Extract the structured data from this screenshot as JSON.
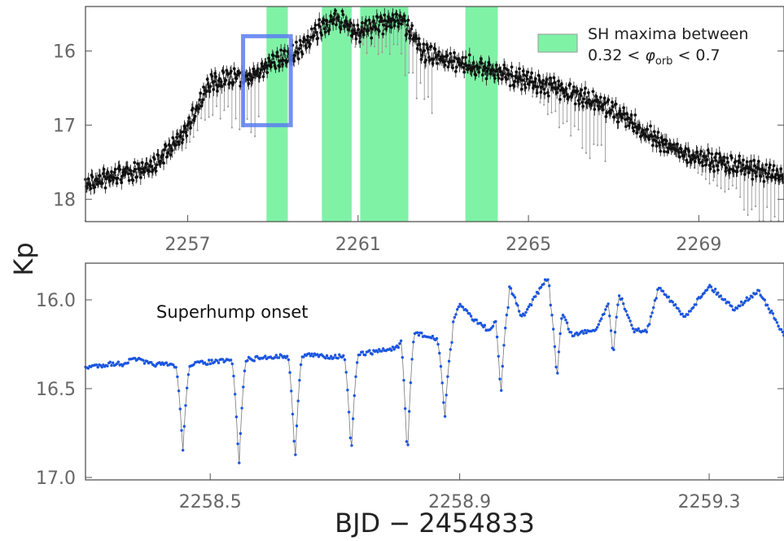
{
  "figure": {
    "ylabel": "Kp",
    "xlabel": "BJD − 2454833"
  },
  "colors": {
    "sh_band": "#7FF2A6",
    "zoom_box": "#5B7EF0",
    "top_points": "#111111",
    "top_errorbars": "#9a9a9a",
    "bottom_series": "#1A55E0"
  },
  "chart_data": [
    {
      "type": "scatter",
      "panel": "top",
      "xlim": [
        2254.6,
        2271.0
      ],
      "ylim": [
        18.3,
        15.4
      ],
      "y_inverted": true,
      "xticks": [
        2257,
        2261,
        2265,
        2269
      ],
      "xtick_labels": [
        "2257",
        "2261",
        "2265",
        "2269"
      ],
      "yticks": [
        16,
        17,
        18
      ],
      "ytick_labels": [
        "16",
        "17",
        "18"
      ],
      "legend": {
        "line1": "SH maxima between",
        "line2_prefix": "0.32 < ",
        "line2_symbol": "φ",
        "line2_sub": "orb",
        "line2_suffix": " < 0.7",
        "placement": "top-right"
      },
      "shaded_bands": [
        [
          2258.85,
          2259.35
        ],
        [
          2260.15,
          2260.85
        ],
        [
          2261.05,
          2262.18
        ],
        [
          2263.52,
          2264.28
        ]
      ],
      "zoom_box": {
        "x": [
          2258.3,
          2259.42
        ],
        "y": [
          15.8,
          17.0
        ]
      },
      "series": [
        {
          "envelope_x": [
            2254.6,
            2255.5,
            2256.2,
            2256.8,
            2257.1,
            2257.5,
            2258.0,
            2258.5,
            2259.0,
            2259.5,
            2260.0,
            2260.5,
            2261.0,
            2261.5,
            2262.0,
            2262.5,
            2263.0,
            2264.0,
            2265.0,
            2266.0,
            2267.0,
            2268.0,
            2269.0,
            2270.0,
            2271.0
          ],
          "envelope_y": [
            17.8,
            17.65,
            17.55,
            17.2,
            16.9,
            16.45,
            16.35,
            16.35,
            16.15,
            16.05,
            15.75,
            15.55,
            15.75,
            15.65,
            15.55,
            16.0,
            16.1,
            16.25,
            16.4,
            16.55,
            16.8,
            17.2,
            17.45,
            17.55,
            17.7
          ],
          "modulation_amplitude": 0.12,
          "eclipse_depth": 0.85,
          "orbital_period": 0.0904
        }
      ]
    },
    {
      "type": "line",
      "panel": "bottom",
      "annotation": "Superhump onset",
      "xlim": [
        2258.3,
        2259.42
      ],
      "ylim": [
        17.0,
        15.8
      ],
      "y_inverted": true,
      "xticks": [
        2258.5,
        2258.9,
        2259.3
      ],
      "xtick_labels": [
        "2258.5",
        "2258.9",
        "2259.3"
      ],
      "yticks": [
        16.0,
        16.5,
        17.0
      ],
      "ytick_labels": [
        "16.0",
        "16.5",
        "17.0"
      ],
      "series": [
        {
          "x": [
            2258.3,
            2258.32,
            2258.34,
            2258.36,
            2258.38,
            2258.4,
            2258.45,
            2258.5,
            2258.55,
            2258.6,
            2258.65,
            2258.7,
            2258.75,
            2258.8,
            2258.82,
            2258.85,
            2258.88,
            2258.9,
            2258.92,
            2258.95,
            2258.98,
            2259.0,
            2259.04,
            2259.08,
            2259.12,
            2259.15,
            2259.18,
            2259.2,
            2259.22,
            2259.26,
            2259.3,
            2259.34,
            2259.38,
            2259.42
          ],
          "y": [
            16.38,
            16.37,
            16.36,
            16.36,
            16.33,
            16.36,
            16.37,
            16.35,
            16.34,
            16.32,
            16.31,
            16.32,
            16.3,
            16.27,
            16.17,
            16.21,
            16.24,
            16.02,
            16.1,
            16.18,
            15.92,
            16.1,
            15.88,
            16.2,
            16.16,
            15.92,
            16.17,
            16.18,
            15.92,
            16.1,
            15.92,
            16.05,
            15.95,
            16.2
          ]
        }
      ],
      "eclipses": [
        {
          "x": 2258.456,
          "y": 16.86
        },
        {
          "x": 2258.546,
          "y": 16.95
        },
        {
          "x": 2258.636,
          "y": 16.92
        },
        {
          "x": 2258.726,
          "y": 16.88
        },
        {
          "x": 2258.816,
          "y": 16.91
        },
        {
          "x": 2258.876,
          "y": 16.68
        },
        {
          "x": 2258.966,
          "y": 16.55
        },
        {
          "x": 2259.056,
          "y": 16.46
        },
        {
          "x": 2259.146,
          "y": 16.33
        }
      ]
    }
  ]
}
